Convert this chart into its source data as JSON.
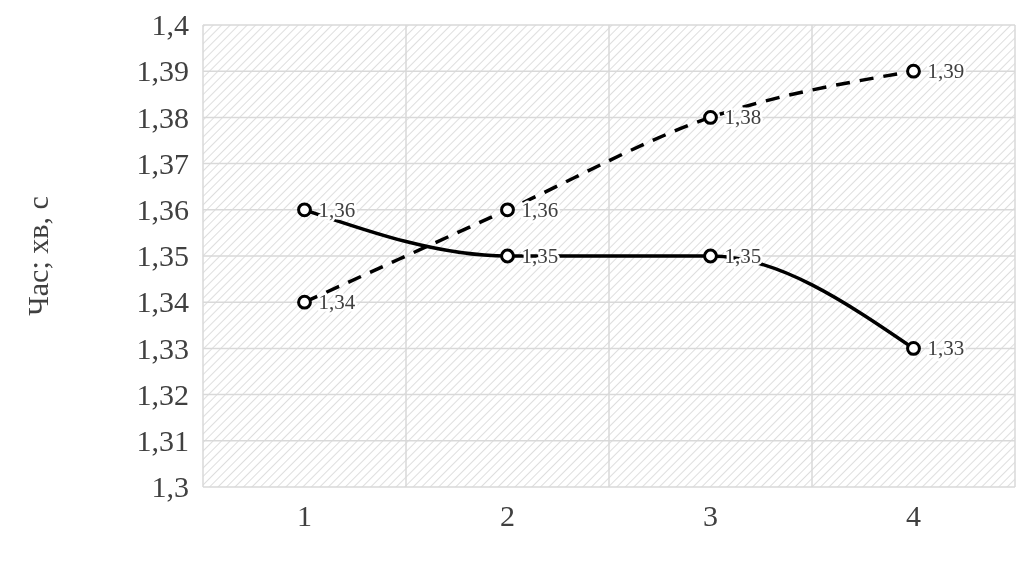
{
  "chart_data": {
    "type": "line",
    "ylabel": "Час; хв, с",
    "categories": [
      "1",
      "2",
      "3",
      "4"
    ],
    "series": [
      {
        "color": "#000000",
        "line_style": "solid",
        "values": [
          1.36,
          1.35,
          1.35,
          1.33
        ],
        "value_labels": [
          "1,36",
          "1,35",
          "1,35",
          "1,33"
        ]
      },
      {
        "color": "#000000",
        "line_style": "dashed",
        "values": [
          1.34,
          1.36,
          1.38,
          1.39
        ],
        "value_labels": [
          "1,34",
          "1,36",
          "1,38",
          "1,39"
        ]
      }
    ],
    "ylim": [
      1.3,
      1.4
    ],
    "yticks": [
      {
        "value": 1.3,
        "label": "1,3"
      },
      {
        "value": 1.31,
        "label": "1,31"
      },
      {
        "value": 1.32,
        "label": "1,32"
      },
      {
        "value": 1.33,
        "label": "1,33"
      },
      {
        "value": 1.34,
        "label": "1,34"
      },
      {
        "value": 1.35,
        "label": "1,35"
      },
      {
        "value": 1.36,
        "label": "1,36"
      },
      {
        "value": 1.37,
        "label": "1,37"
      },
      {
        "value": 1.38,
        "label": "1,38"
      },
      {
        "value": 1.39,
        "label": "1,39"
      },
      {
        "value": 1.4,
        "label": "1,4"
      }
    ],
    "grid": true,
    "marker": "circle"
  }
}
